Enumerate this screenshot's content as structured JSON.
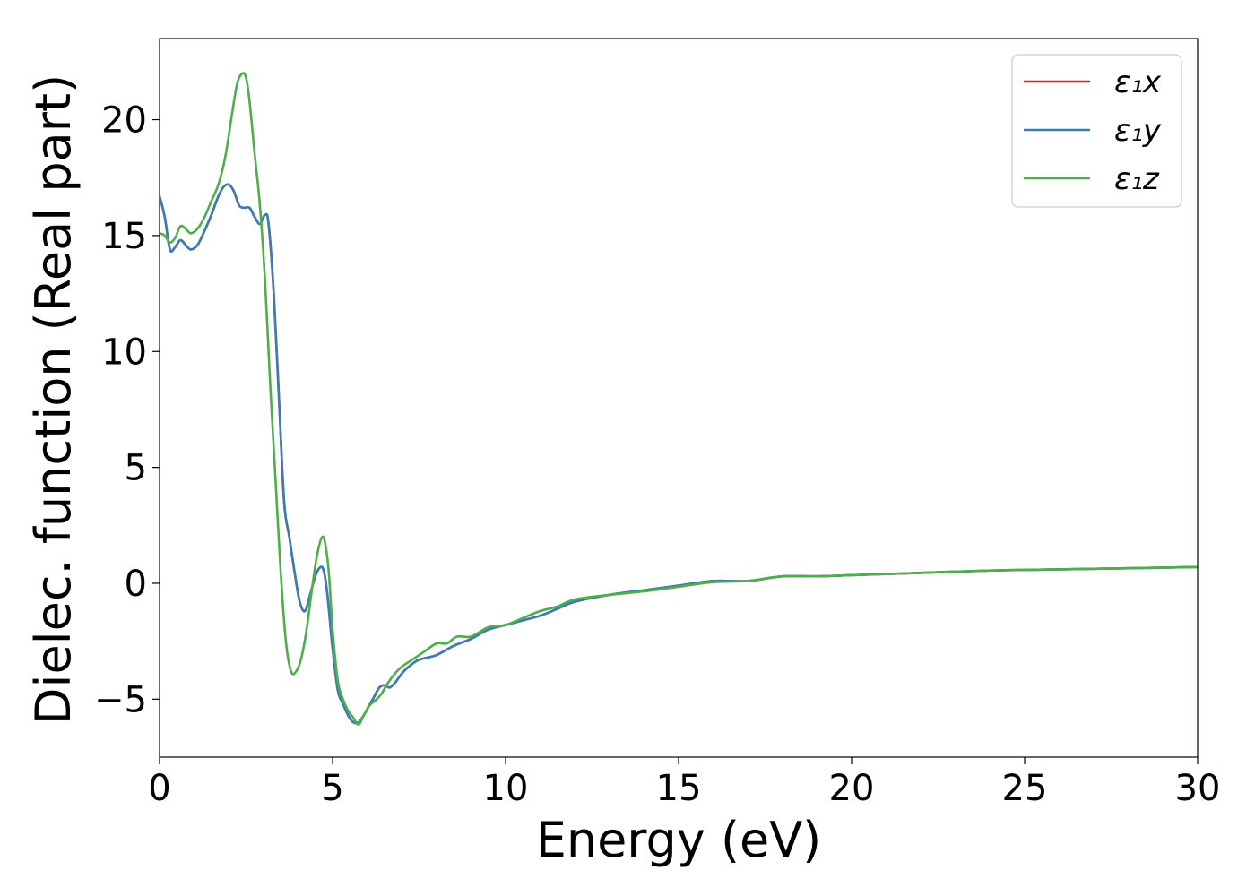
{
  "chart_data": {
    "type": "line",
    "xlabel": "Energy (eV)",
    "ylabel": "Dielec. function (Real part)",
    "xlim": [
      0,
      30
    ],
    "ylim": [
      -7.5,
      23.5
    ],
    "xticks": [
      0,
      5,
      10,
      15,
      20,
      25,
      30
    ],
    "xtick_labels": [
      "0",
      "5",
      "10",
      "15",
      "20",
      "25",
      "30"
    ],
    "yticks": [
      -5,
      0,
      5,
      10,
      15,
      20
    ],
    "ytick_labels": [
      "−5",
      "0",
      "5",
      "10",
      "15",
      "20"
    ],
    "grid": false,
    "legend_position": "top-right",
    "series": [
      {
        "name": "ε₁x",
        "color": "#e41a1c",
        "x": [
          0,
          0.15,
          0.3,
          0.45,
          0.6,
          0.75,
          0.9,
          1.1,
          1.3,
          1.5,
          1.7,
          1.85,
          2.0,
          2.15,
          2.3,
          2.45,
          2.6,
          2.75,
          2.9,
          3.05,
          3.15,
          3.3,
          3.45,
          3.6,
          3.75,
          3.9,
          4.05,
          4.2,
          4.35,
          4.5,
          4.65,
          4.75,
          4.85,
          5.0,
          5.15,
          5.3,
          5.45,
          5.6,
          5.75,
          5.9,
          6.05,
          6.2,
          6.35,
          6.5,
          6.65,
          6.8,
          7.0,
          7.2,
          7.5,
          8.0,
          8.5,
          9.0,
          9.5,
          10.0,
          10.5,
          11.0,
          11.5,
          12.0,
          13.0,
          14.0,
          15.0,
          16.0,
          17.0,
          18.0,
          19.0,
          20.0,
          22.0,
          24.0,
          26.0,
          28.0,
          30.0
        ],
        "y": [
          16.7,
          15.8,
          14.4,
          14.5,
          14.8,
          14.6,
          14.4,
          14.6,
          15.2,
          15.9,
          16.7,
          17.1,
          17.2,
          16.9,
          16.3,
          16.2,
          16.2,
          15.8,
          15.5,
          15.9,
          15.5,
          12.5,
          8.0,
          3.5,
          2.0,
          0.5,
          -0.8,
          -1.2,
          -0.5,
          0.3,
          0.7,
          0.5,
          -0.5,
          -2.8,
          -4.6,
          -5.2,
          -5.7,
          -6.0,
          -6.0,
          -5.7,
          -5.3,
          -4.9,
          -4.5,
          -4.4,
          -4.5,
          -4.3,
          -3.9,
          -3.6,
          -3.3,
          -3.1,
          -2.7,
          -2.4,
          -2.0,
          -1.8,
          -1.6,
          -1.4,
          -1.1,
          -0.8,
          -0.5,
          -0.3,
          -0.1,
          0.1,
          0.1,
          0.3,
          0.3,
          0.35,
          0.45,
          0.55,
          0.6,
          0.65,
          0.7
        ]
      },
      {
        "name": "ε₁y",
        "color": "#377eb8",
        "x": [
          0,
          0.15,
          0.3,
          0.45,
          0.6,
          0.75,
          0.9,
          1.1,
          1.3,
          1.5,
          1.7,
          1.85,
          2.0,
          2.15,
          2.3,
          2.45,
          2.6,
          2.75,
          2.9,
          3.05,
          3.15,
          3.3,
          3.45,
          3.6,
          3.75,
          3.9,
          4.05,
          4.2,
          4.35,
          4.5,
          4.65,
          4.75,
          4.85,
          5.0,
          5.15,
          5.3,
          5.45,
          5.6,
          5.75,
          5.9,
          6.05,
          6.2,
          6.35,
          6.5,
          6.65,
          6.8,
          7.0,
          7.2,
          7.5,
          8.0,
          8.5,
          9.0,
          9.5,
          10.0,
          10.5,
          11.0,
          11.5,
          12.0,
          13.0,
          14.0,
          15.0,
          16.0,
          17.0,
          18.0,
          19.0,
          20.0,
          22.0,
          24.0,
          26.0,
          28.0,
          30.0
        ],
        "y": [
          16.7,
          15.8,
          14.4,
          14.5,
          14.8,
          14.6,
          14.4,
          14.6,
          15.2,
          15.9,
          16.7,
          17.1,
          17.2,
          16.9,
          16.3,
          16.2,
          16.2,
          15.8,
          15.5,
          15.9,
          15.5,
          12.5,
          8.0,
          3.5,
          2.0,
          0.5,
          -0.8,
          -1.2,
          -0.5,
          0.3,
          0.7,
          0.5,
          -0.5,
          -2.8,
          -4.6,
          -5.2,
          -5.7,
          -6.0,
          -6.0,
          -5.7,
          -5.3,
          -4.9,
          -4.5,
          -4.4,
          -4.5,
          -4.3,
          -3.9,
          -3.6,
          -3.3,
          -3.1,
          -2.7,
          -2.4,
          -2.0,
          -1.8,
          -1.6,
          -1.4,
          -1.1,
          -0.8,
          -0.5,
          -0.3,
          -0.1,
          0.1,
          0.1,
          0.3,
          0.3,
          0.35,
          0.45,
          0.55,
          0.6,
          0.65,
          0.7
        ]
      },
      {
        "name": "ε₁z",
        "color": "#4daf4a",
        "x": [
          0,
          0.15,
          0.3,
          0.45,
          0.6,
          0.75,
          0.9,
          1.1,
          1.3,
          1.5,
          1.7,
          1.9,
          2.1,
          2.25,
          2.4,
          2.5,
          2.6,
          2.75,
          2.9,
          3.05,
          3.2,
          3.35,
          3.5,
          3.65,
          3.8,
          3.95,
          4.1,
          4.25,
          4.4,
          4.55,
          4.7,
          4.8,
          4.9,
          5.0,
          5.15,
          5.3,
          5.45,
          5.6,
          5.75,
          5.9,
          6.05,
          6.2,
          6.4,
          6.6,
          6.8,
          7.0,
          7.3,
          7.6,
          8.0,
          8.3,
          8.6,
          9.0,
          9.5,
          10.0,
          10.5,
          11.0,
          11.5,
          12.0,
          13.0,
          14.0,
          15.0,
          16.0,
          17.0,
          18.0,
          19.0,
          20.0,
          22.0,
          24.0,
          26.0,
          28.0,
          30.0
        ],
        "y": [
          15.1,
          15.0,
          14.7,
          14.9,
          15.4,
          15.3,
          15.1,
          15.3,
          15.8,
          16.5,
          17.2,
          18.4,
          20.3,
          21.6,
          22.0,
          21.8,
          20.8,
          18.5,
          16.3,
          13.0,
          8.5,
          4.5,
          0.5,
          -2.5,
          -3.8,
          -3.8,
          -3.2,
          -2.0,
          -0.3,
          1.2,
          2.0,
          1.6,
          0.3,
          -2.0,
          -4.2,
          -5.0,
          -5.5,
          -5.8,
          -6.1,
          -5.7,
          -5.3,
          -5.1,
          -4.8,
          -4.3,
          -3.9,
          -3.6,
          -3.3,
          -3.0,
          -2.6,
          -2.6,
          -2.3,
          -2.3,
          -1.9,
          -1.8,
          -1.5,
          -1.2,
          -1.0,
          -0.7,
          -0.5,
          -0.35,
          -0.15,
          0.05,
          0.1,
          0.3,
          0.3,
          0.35,
          0.45,
          0.55,
          0.6,
          0.65,
          0.7
        ]
      }
    ]
  }
}
